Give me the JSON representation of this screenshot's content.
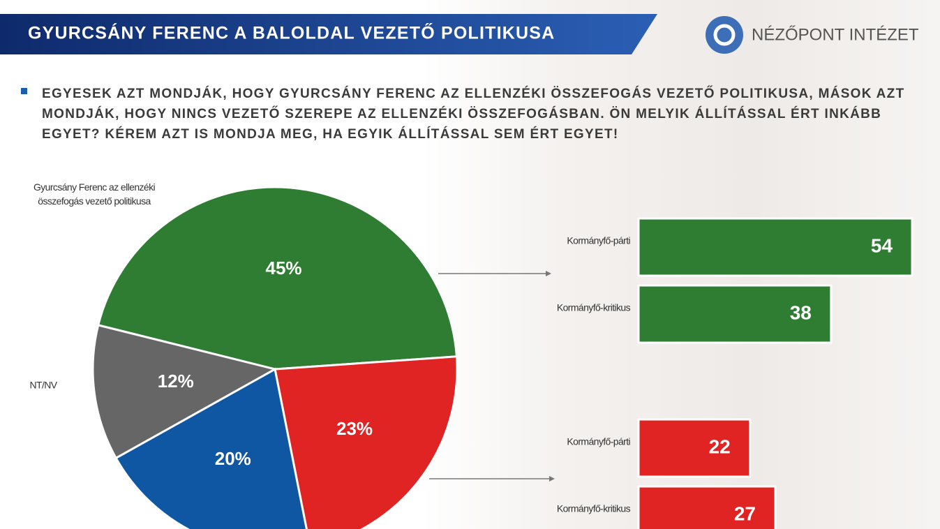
{
  "header": {
    "title": "GYURCSÁNY FERENC A BALOLDAL VEZETŐ POLITIKUSA",
    "brand": "NÉZŐPONT INTÉZET"
  },
  "question": "EGYESEK AZT MONDJÁK, HOGY GYURCSÁNY FERENC AZ ELLENZÉKI ÖSSZEFOGÁS VEZETŐ POLITIKUSA, MÁSOK AZT MONDJÁK, HOGY NINCS VEZETŐ SZEREPE AZ ELLENZÉKI ÖSSZEFOGÁSBAN. ÖN MELYIK ÁLLÍTÁSSAL ÉRT INKÁBB EGYET? KÉREM AZT IS MONDJA MEG, HA EGYIK ÁLLÍTÁSSAL SEM ÉRT EGYET!",
  "chart_data": [
    {
      "type": "pie",
      "categories": [
        "Gyurcsány Ferenc az ellenzéki összefogás vezető politikusa",
        null,
        null,
        "NT/NV"
      ],
      "values": [
        45,
        23,
        20,
        12
      ],
      "value_labels": [
        "45%",
        "23%",
        "20%",
        "12%"
      ],
      "colors": [
        "#2e7d32",
        "#e02424",
        "#0f57a3",
        "#666666"
      ]
    },
    {
      "type": "bar",
      "orientation": "horizontal",
      "categories": [
        "Kormányfő-párti",
        "Kormányfő-kritikus"
      ],
      "values": [
        54,
        38
      ],
      "color": "#2e7d32"
    },
    {
      "type": "bar",
      "orientation": "horizontal",
      "categories": [
        "Kormányfő-párti",
        "Kormányfő-kritikus"
      ],
      "values": [
        22,
        27
      ],
      "color": "#e02424"
    }
  ]
}
